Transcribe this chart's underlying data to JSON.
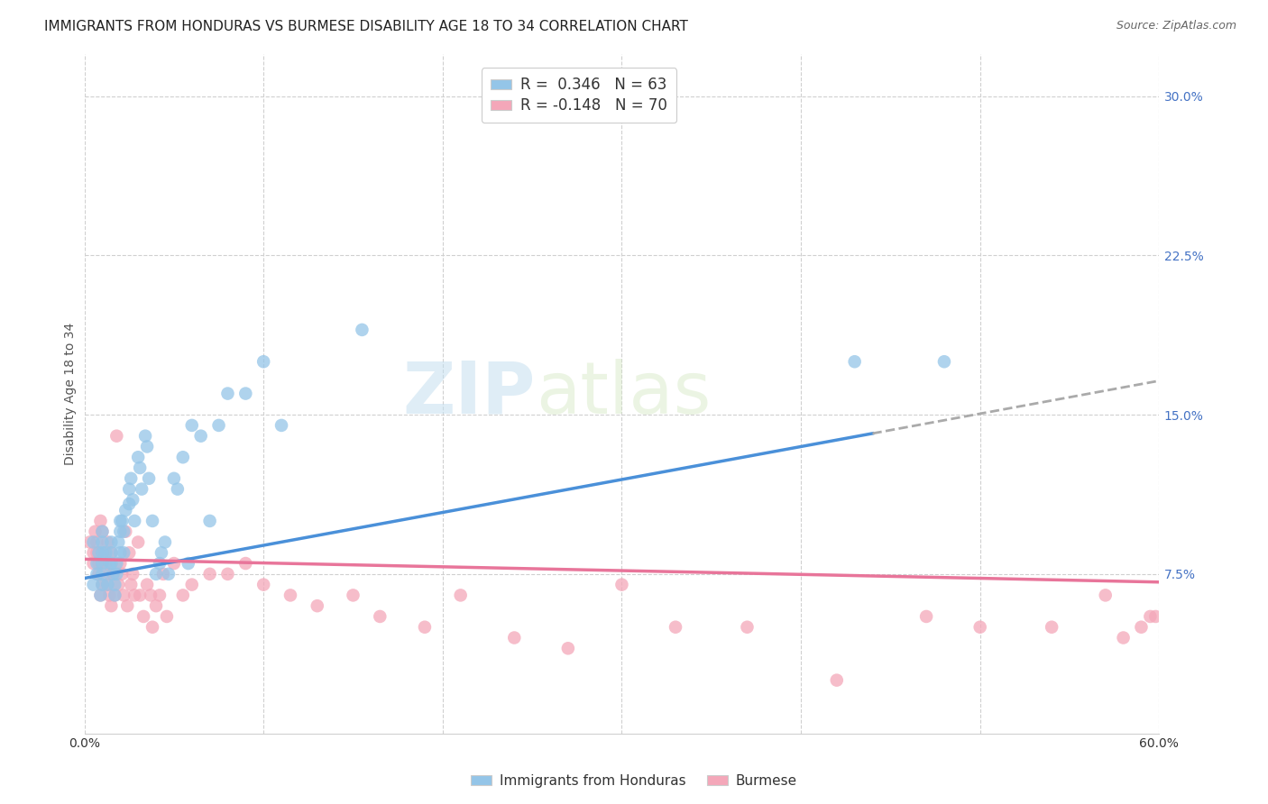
{
  "title": "IMMIGRANTS FROM HONDURAS VS BURMESE DISABILITY AGE 18 TO 34 CORRELATION CHART",
  "source": "Source: ZipAtlas.com",
  "ylabel": "Disability Age 18 to 34",
  "xlim": [
    0.0,
    0.6
  ],
  "ylim": [
    0.0,
    0.32
  ],
  "yticks_right": [
    0.075,
    0.15,
    0.225,
    0.3
  ],
  "ytick_labels_right": [
    "7.5%",
    "15.0%",
    "22.5%",
    "30.0%"
  ],
  "color_blue": "#94c5e8",
  "color_blue_line": "#4a90d9",
  "color_pink": "#f4a7b9",
  "color_pink_line": "#e8759a",
  "color_gray_dashed": "#aaaaaa",
  "blue_scatter_x": [
    0.005,
    0.005,
    0.007,
    0.007,
    0.008,
    0.009,
    0.01,
    0.01,
    0.01,
    0.01,
    0.01,
    0.01,
    0.012,
    0.013,
    0.014,
    0.015,
    0.015,
    0.015,
    0.016,
    0.017,
    0.017,
    0.018,
    0.018,
    0.019,
    0.02,
    0.02,
    0.02,
    0.021,
    0.022,
    0.022,
    0.023,
    0.025,
    0.025,
    0.026,
    0.027,
    0.028,
    0.03,
    0.031,
    0.032,
    0.034,
    0.035,
    0.036,
    0.038,
    0.04,
    0.042,
    0.043,
    0.045,
    0.047,
    0.05,
    0.052,
    0.055,
    0.058,
    0.06,
    0.065,
    0.07,
    0.075,
    0.08,
    0.09,
    0.1,
    0.11,
    0.155,
    0.43,
    0.48
  ],
  "blue_scatter_y": [
    0.09,
    0.07,
    0.08,
    0.075,
    0.085,
    0.065,
    0.095,
    0.09,
    0.085,
    0.08,
    0.075,
    0.07,
    0.085,
    0.07,
    0.08,
    0.09,
    0.085,
    0.08,
    0.075,
    0.07,
    0.065,
    0.08,
    0.075,
    0.09,
    0.1,
    0.095,
    0.085,
    0.1,
    0.095,
    0.085,
    0.105,
    0.115,
    0.108,
    0.12,
    0.11,
    0.1,
    0.13,
    0.125,
    0.115,
    0.14,
    0.135,
    0.12,
    0.1,
    0.075,
    0.08,
    0.085,
    0.09,
    0.075,
    0.12,
    0.115,
    0.13,
    0.08,
    0.145,
    0.14,
    0.1,
    0.145,
    0.16,
    0.16,
    0.175,
    0.145,
    0.19,
    0.175,
    0.175
  ],
  "pink_scatter_x": [
    0.003,
    0.005,
    0.005,
    0.006,
    0.007,
    0.007,
    0.008,
    0.008,
    0.009,
    0.009,
    0.01,
    0.01,
    0.011,
    0.012,
    0.013,
    0.013,
    0.014,
    0.014,
    0.015,
    0.015,
    0.016,
    0.017,
    0.018,
    0.019,
    0.02,
    0.021,
    0.022,
    0.023,
    0.024,
    0.025,
    0.026,
    0.027,
    0.028,
    0.03,
    0.031,
    0.033,
    0.035,
    0.037,
    0.038,
    0.04,
    0.042,
    0.044,
    0.046,
    0.05,
    0.055,
    0.06,
    0.07,
    0.08,
    0.09,
    0.1,
    0.115,
    0.13,
    0.15,
    0.165,
    0.19,
    0.21,
    0.24,
    0.27,
    0.3,
    0.33,
    0.37,
    0.42,
    0.47,
    0.5,
    0.54,
    0.57,
    0.58,
    0.59,
    0.595,
    0.598
  ],
  "pink_scatter_y": [
    0.09,
    0.085,
    0.08,
    0.095,
    0.09,
    0.085,
    0.08,
    0.075,
    0.1,
    0.065,
    0.095,
    0.07,
    0.085,
    0.08,
    0.09,
    0.07,
    0.065,
    0.075,
    0.085,
    0.06,
    0.075,
    0.065,
    0.14,
    0.07,
    0.08,
    0.075,
    0.065,
    0.095,
    0.06,
    0.085,
    0.07,
    0.075,
    0.065,
    0.09,
    0.065,
    0.055,
    0.07,
    0.065,
    0.05,
    0.06,
    0.065,
    0.075,
    0.055,
    0.08,
    0.065,
    0.07,
    0.075,
    0.075,
    0.08,
    0.07,
    0.065,
    0.06,
    0.065,
    0.055,
    0.05,
    0.065,
    0.045,
    0.04,
    0.07,
    0.05,
    0.05,
    0.025,
    0.055,
    0.05,
    0.05,
    0.065,
    0.045,
    0.05,
    0.055,
    0.055
  ],
  "blue_line_start_x": 0.0,
  "blue_line_end_x": 0.6,
  "blue_line_solid_end": 0.44,
  "blue_line_y_intercept": 0.073,
  "blue_line_slope": 0.155,
  "pink_line_start_x": 0.0,
  "pink_line_end_x": 0.6,
  "pink_line_y_intercept": 0.082,
  "pink_line_slope": -0.018,
  "grid_color": "#d0d0d0",
  "background_color": "#ffffff",
  "title_fontsize": 11,
  "axis_label_fontsize": 10,
  "tick_fontsize": 10,
  "scatter_size": 110,
  "scatter_alpha": 0.75
}
